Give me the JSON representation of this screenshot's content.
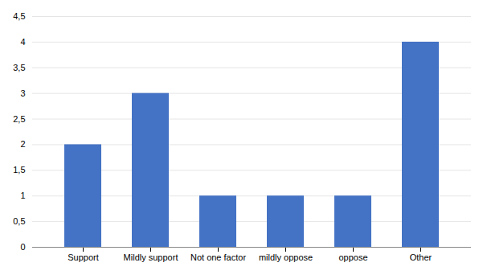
{
  "chart_data": {
    "type": "bar",
    "categories": [
      "Support",
      "Mildly support",
      "Not one factor",
      "mildly oppose",
      "oppose",
      "Other"
    ],
    "values": [
      2,
      3,
      1,
      1,
      1,
      4
    ],
    "color": "#4472C4",
    "ylim": [
      0,
      4.5
    ],
    "yticks": [
      0,
      {
        "value": 0.5,
        "label": "0,5"
      },
      1,
      {
        "value": 1.5,
        "label": "1,5"
      },
      2,
      {
        "value": 2.5,
        "label": "2,5"
      },
      3,
      {
        "value": 3.5,
        "label": "3,5"
      },
      4,
      {
        "value": 4.5,
        "label": "4,5"
      }
    ],
    "grid": true
  }
}
